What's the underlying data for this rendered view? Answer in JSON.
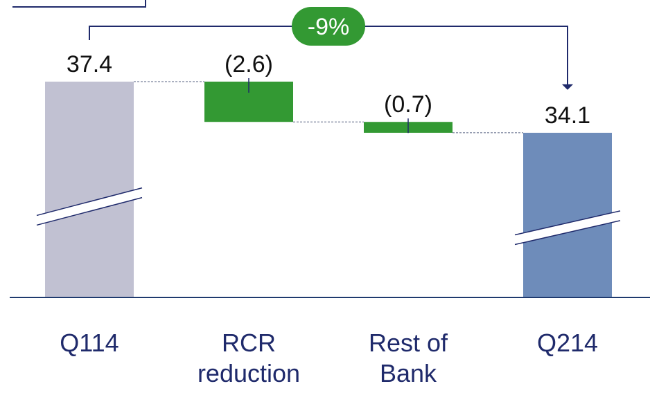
{
  "chart_data": {
    "type": "waterfall",
    "categories": [
      "Q114",
      "RCR reduction",
      "Rest of Bank",
      "Q214"
    ],
    "values": [
      37.4,
      -2.6,
      -0.7,
      34.1
    ],
    "value_labels": [
      "37.4",
      "(2.6)",
      "(0.7)",
      "34.1"
    ],
    "colors": [
      "#c1c1d2",
      "#339933",
      "#339933",
      "#6e8cba"
    ],
    "annotation": "-9%"
  }
}
